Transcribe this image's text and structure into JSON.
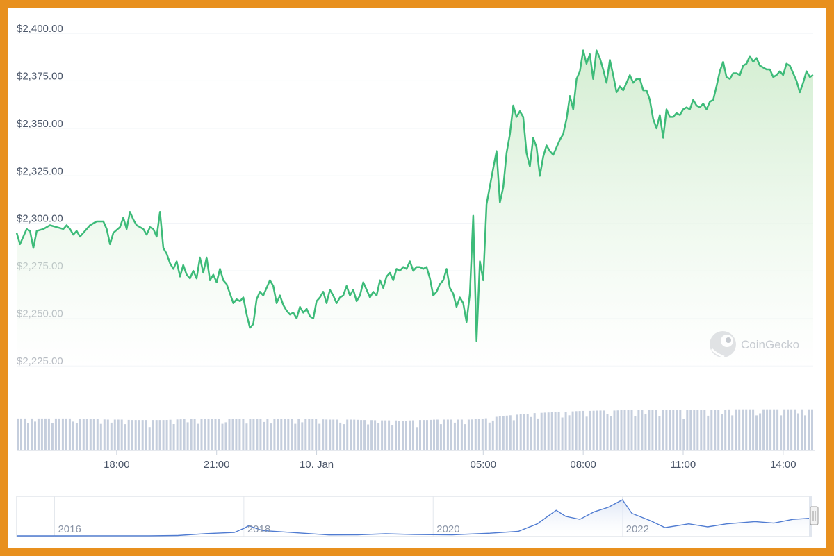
{
  "colors": {
    "line": "#3dbb79",
    "area_top": "#cfeccd",
    "volume": "#c5cedd",
    "grid": "#eef1f5",
    "navigator_line": "#4f7bd1",
    "frame": "#e8901e"
  },
  "watermark": {
    "text": "CoinGecko",
    "icon": "gecko-logo-icon"
  },
  "chart_data": {
    "type": "line",
    "y_tick_labels": [
      "$2,400.00",
      "$2,375.00",
      "$2,350.00",
      "$2,325.00",
      "$2,300.00",
      "$2,275.00",
      "$2,250.00",
      "$2,225.00"
    ],
    "x_tick_labels": [
      "18:00",
      "21:00",
      "10. Jan",
      "05:00",
      "08:00",
      "11:00",
      "14:00"
    ],
    "x_tick_hours": [
      3,
      6,
      9,
      14,
      17,
      20,
      23
    ],
    "ylim": [
      2225,
      2400
    ],
    "x_range_hours": [
      0,
      23.9
    ],
    "grid": true,
    "series": [
      {
        "values": [
          [
            0.0,
            2295
          ],
          [
            0.1,
            2289
          ],
          [
            0.3,
            2297
          ],
          [
            0.4,
            2296
          ],
          [
            0.5,
            2287
          ],
          [
            0.6,
            2296
          ],
          [
            0.8,
            2297
          ],
          [
            1.0,
            2299
          ],
          [
            1.2,
            2298
          ],
          [
            1.4,
            2297
          ],
          [
            1.5,
            2299
          ],
          [
            1.6,
            2297
          ],
          [
            1.7,
            2294
          ],
          [
            1.8,
            2296
          ],
          [
            1.9,
            2293
          ],
          [
            2.0,
            2295
          ],
          [
            2.2,
            2299
          ],
          [
            2.4,
            2301
          ],
          [
            2.6,
            2301
          ],
          [
            2.7,
            2297
          ],
          [
            2.8,
            2289
          ],
          [
            2.9,
            2295
          ],
          [
            3.1,
            2298
          ],
          [
            3.2,
            2303
          ],
          [
            3.3,
            2297
          ],
          [
            3.4,
            2306
          ],
          [
            3.5,
            2302
          ],
          [
            3.6,
            2299
          ],
          [
            3.7,
            2298
          ],
          [
            3.8,
            2297
          ],
          [
            3.9,
            2294
          ],
          [
            4.0,
            2298
          ],
          [
            4.1,
            2297
          ],
          [
            4.2,
            2293
          ],
          [
            4.3,
            2306
          ],
          [
            4.4,
            2287
          ],
          [
            4.5,
            2284
          ],
          [
            4.6,
            2279
          ],
          [
            4.7,
            2276
          ],
          [
            4.8,
            2280
          ],
          [
            4.9,
            2272
          ],
          [
            5.0,
            2278
          ],
          [
            5.1,
            2273
          ],
          [
            5.2,
            2271
          ],
          [
            5.3,
            2275
          ],
          [
            5.4,
            2271
          ],
          [
            5.5,
            2282
          ],
          [
            5.6,
            2274
          ],
          [
            5.7,
            2282
          ],
          [
            5.8,
            2270
          ],
          [
            5.9,
            2273
          ],
          [
            6.0,
            2269
          ],
          [
            6.1,
            2276
          ],
          [
            6.2,
            2270
          ],
          [
            6.3,
            2268
          ],
          [
            6.4,
            2263
          ],
          [
            6.5,
            2258
          ],
          [
            6.6,
            2260
          ],
          [
            6.7,
            2259
          ],
          [
            6.8,
            2261
          ],
          [
            6.9,
            2252
          ],
          [
            7.0,
            2245
          ],
          [
            7.1,
            2247
          ],
          [
            7.2,
            2260
          ],
          [
            7.3,
            2264
          ],
          [
            7.4,
            2262
          ],
          [
            7.5,
            2266
          ],
          [
            7.6,
            2270
          ],
          [
            7.7,
            2267
          ],
          [
            7.8,
            2258
          ],
          [
            7.9,
            2262
          ],
          [
            8.0,
            2257
          ],
          [
            8.1,
            2254
          ],
          [
            8.2,
            2252
          ],
          [
            8.3,
            2253
          ],
          [
            8.4,
            2250
          ],
          [
            8.5,
            2256
          ],
          [
            8.6,
            2253
          ],
          [
            8.7,
            2255
          ],
          [
            8.8,
            2251
          ],
          [
            8.9,
            2250
          ],
          [
            9.0,
            2259
          ],
          [
            9.1,
            2261
          ],
          [
            9.2,
            2264
          ],
          [
            9.3,
            2258
          ],
          [
            9.4,
            2265
          ],
          [
            9.5,
            2262
          ],
          [
            9.6,
            2258
          ],
          [
            9.7,
            2261
          ],
          [
            9.8,
            2262
          ],
          [
            9.9,
            2267
          ],
          [
            10.0,
            2262
          ],
          [
            10.1,
            2265
          ],
          [
            10.2,
            2259
          ],
          [
            10.3,
            2262
          ],
          [
            10.4,
            2269
          ],
          [
            10.5,
            2265
          ],
          [
            10.6,
            2261
          ],
          [
            10.7,
            2264
          ],
          [
            10.8,
            2262
          ],
          [
            10.9,
            2270
          ],
          [
            11.0,
            2266
          ],
          [
            11.1,
            2272
          ],
          [
            11.2,
            2274
          ],
          [
            11.3,
            2270
          ],
          [
            11.4,
            2276
          ],
          [
            11.5,
            2275
          ],
          [
            11.6,
            2277
          ],
          [
            11.7,
            2276
          ],
          [
            11.8,
            2280
          ],
          [
            11.9,
            2275
          ],
          [
            12.0,
            2277
          ],
          [
            12.1,
            2277
          ],
          [
            12.2,
            2276
          ],
          [
            12.3,
            2277
          ],
          [
            12.4,
            2271
          ],
          [
            12.5,
            2262
          ],
          [
            12.6,
            2264
          ],
          [
            12.7,
            2268
          ],
          [
            12.8,
            2270
          ],
          [
            12.9,
            2276
          ],
          [
            13.0,
            2266
          ],
          [
            13.1,
            2263
          ],
          [
            13.2,
            2256
          ],
          [
            13.3,
            2261
          ],
          [
            13.4,
            2258
          ],
          [
            13.5,
            2248
          ],
          [
            13.6,
            2263
          ],
          [
            13.7,
            2304
          ],
          [
            13.8,
            2238
          ],
          [
            13.9,
            2280
          ],
          [
            14.0,
            2270
          ],
          [
            14.1,
            2310
          ],
          [
            14.3,
            2329
          ],
          [
            14.4,
            2338
          ],
          [
            14.5,
            2311
          ],
          [
            14.6,
            2319
          ],
          [
            14.7,
            2337
          ],
          [
            14.8,
            2347
          ],
          [
            14.9,
            2362
          ],
          [
            15.0,
            2356
          ],
          [
            15.1,
            2359
          ],
          [
            15.2,
            2356
          ],
          [
            15.3,
            2337
          ],
          [
            15.4,
            2330
          ],
          [
            15.5,
            2345
          ],
          [
            15.6,
            2340
          ],
          [
            15.7,
            2325
          ],
          [
            15.8,
            2335
          ],
          [
            15.9,
            2341
          ],
          [
            16.0,
            2338
          ],
          [
            16.1,
            2336
          ],
          [
            16.2,
            2340
          ],
          [
            16.3,
            2344
          ],
          [
            16.4,
            2347
          ],
          [
            16.5,
            2355
          ],
          [
            16.6,
            2367
          ],
          [
            16.7,
            2360
          ],
          [
            16.8,
            2376
          ],
          [
            16.9,
            2380
          ],
          [
            17.0,
            2391
          ],
          [
            17.1,
            2384
          ],
          [
            17.2,
            2389
          ],
          [
            17.3,
            2376
          ],
          [
            17.4,
            2391
          ],
          [
            17.5,
            2387
          ],
          [
            17.6,
            2381
          ],
          [
            17.7,
            2374
          ],
          [
            17.8,
            2386
          ],
          [
            17.9,
            2378
          ],
          [
            18.0,
            2369
          ],
          [
            18.1,
            2372
          ],
          [
            18.2,
            2370
          ],
          [
            18.3,
            2374
          ],
          [
            18.4,
            2378
          ],
          [
            18.5,
            2374
          ],
          [
            18.6,
            2376
          ],
          [
            18.7,
            2376
          ],
          [
            18.8,
            2370
          ],
          [
            18.9,
            2370
          ],
          [
            19.0,
            2365
          ],
          [
            19.1,
            2355
          ],
          [
            19.2,
            2350
          ],
          [
            19.3,
            2357
          ],
          [
            19.4,
            2345
          ],
          [
            19.5,
            2360
          ],
          [
            19.6,
            2356
          ],
          [
            19.7,
            2356
          ],
          [
            19.8,
            2358
          ],
          [
            19.9,
            2357
          ],
          [
            20.0,
            2360
          ],
          [
            20.1,
            2361
          ],
          [
            20.2,
            2360
          ],
          [
            20.3,
            2365
          ],
          [
            20.4,
            2362
          ],
          [
            20.5,
            2361
          ],
          [
            20.6,
            2363
          ],
          [
            20.7,
            2360
          ],
          [
            20.8,
            2364
          ],
          [
            20.9,
            2365
          ],
          [
            21.0,
            2372
          ],
          [
            21.1,
            2380
          ],
          [
            21.2,
            2385
          ],
          [
            21.3,
            2377
          ],
          [
            21.4,
            2376
          ],
          [
            21.5,
            2379
          ],
          [
            21.6,
            2379
          ],
          [
            21.7,
            2378
          ],
          [
            21.8,
            2383
          ],
          [
            21.9,
            2384
          ],
          [
            22.0,
            2388
          ],
          [
            22.1,
            2385
          ],
          [
            22.2,
            2387
          ],
          [
            22.3,
            2383
          ],
          [
            22.4,
            2382
          ],
          [
            22.5,
            2381
          ],
          [
            22.6,
            2381
          ],
          [
            22.7,
            2377
          ],
          [
            22.8,
            2378
          ],
          [
            22.9,
            2380
          ],
          [
            23.0,
            2378
          ],
          [
            23.1,
            2384
          ],
          [
            23.2,
            2383
          ],
          [
            23.3,
            2379
          ],
          [
            23.4,
            2375
          ],
          [
            23.5,
            2369
          ],
          [
            23.6,
            2374
          ],
          [
            23.7,
            2380
          ],
          [
            23.8,
            2377
          ],
          [
            23.9,
            2378
          ]
        ]
      }
    ],
    "volume_relative": [
      0.82,
      0.82,
      0.82,
      0.82,
      0.82,
      0.82,
      0.82,
      0.82,
      0.8,
      0.8,
      0.8,
      0.79,
      0.79,
      0.79,
      0.78,
      0.78,
      0.78,
      0.78,
      0.78,
      0.79,
      0.8,
      0.8,
      0.8,
      0.8,
      0.8,
      0.8,
      0.8,
      0.8,
      0.81,
      0.81,
      0.81,
      0.81,
      0.81,
      0.8,
      0.8,
      0.8,
      0.8,
      0.8,
      0.79,
      0.79,
      0.79,
      0.79,
      0.78,
      0.78,
      0.77,
      0.77,
      0.77,
      0.76,
      0.77,
      0.78,
      0.78,
      0.79,
      0.79,
      0.79,
      0.79,
      0.79,
      0.8,
      0.82,
      0.85,
      0.88,
      0.9,
      0.92,
      0.94,
      0.96,
      0.97,
      0.98,
      0.99,
      1.0,
      1.01,
      1.02,
      1.02,
      1.03,
      1.03,
      1.03,
      1.04,
      1.04,
      1.04,
      1.04,
      1.04,
      1.05,
      1.05,
      1.05,
      1.05,
      1.05,
      1.05,
      1.05,
      1.05,
      1.06,
      1.06,
      1.06,
      1.06,
      1.06,
      1.06,
      1.06,
      1.06,
      1.06,
      1.06,
      1.06
    ],
    "navigator": {
      "x_tick_labels": [
        "2016",
        "2018",
        "2020",
        "2022"
      ],
      "x_tick_years": [
        2016,
        2018,
        2020,
        2022
      ],
      "x_range_years": [
        2015.6,
        2024.0
      ],
      "y_range": [
        0,
        4900
      ],
      "values": [
        [
          2015.6,
          1
        ],
        [
          2016.0,
          1
        ],
        [
          2016.5,
          12
        ],
        [
          2017.0,
          8
        ],
        [
          2017.3,
          50
        ],
        [
          2017.6,
          300
        ],
        [
          2017.9,
          450
        ],
        [
          2018.0,
          1000
        ],
        [
          2018.05,
          1350
        ],
        [
          2018.2,
          700
        ],
        [
          2018.5,
          450
        ],
        [
          2018.9,
          120
        ],
        [
          2019.2,
          140
        ],
        [
          2019.5,
          280
        ],
        [
          2019.8,
          180
        ],
        [
          2020.2,
          140
        ],
        [
          2020.6,
          350
        ],
        [
          2020.9,
          600
        ],
        [
          2021.1,
          1600
        ],
        [
          2021.3,
          3400
        ],
        [
          2021.4,
          2600
        ],
        [
          2021.55,
          2200
        ],
        [
          2021.7,
          3200
        ],
        [
          2021.85,
          3800
        ],
        [
          2022.0,
          4800
        ],
        [
          2022.1,
          3000
        ],
        [
          2022.3,
          2000
        ],
        [
          2022.45,
          1100
        ],
        [
          2022.7,
          1600
        ],
        [
          2022.9,
          1200
        ],
        [
          2023.1,
          1600
        ],
        [
          2023.4,
          1900
        ],
        [
          2023.6,
          1700
        ],
        [
          2023.8,
          2200
        ],
        [
          2024.0,
          2360
        ]
      ]
    }
  }
}
